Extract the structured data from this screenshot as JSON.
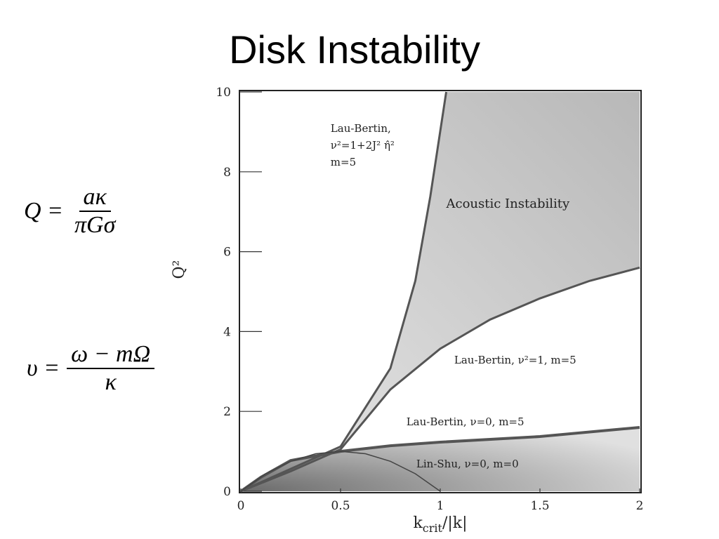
{
  "title": "Disk Instability",
  "equations": [
    {
      "lhs": "Q =",
      "numerator": "aκ",
      "denominator": "πGσ"
    },
    {
      "lhs": "υ =",
      "numerator": "ω − mΩ",
      "denominator": "κ"
    }
  ],
  "chart_data": {
    "type": "line",
    "x_label": {
      "main": "k",
      "sub": "crit",
      "rest": "/|k|"
    },
    "y_label": "Q²",
    "xlim": [
      0,
      2
    ],
    "xticks": [
      0,
      0.5,
      1,
      1.5,
      2
    ],
    "ylim": [
      0,
      10
    ],
    "yticks": [
      0,
      2,
      4,
      6,
      8,
      10
    ],
    "series": [
      {
        "color": "#555555",
        "x": [
          0,
          0.25,
          0.5,
          0.75,
          0.875,
          0.95,
          1.03
        ],
        "values": [
          0,
          0.56,
          1.12,
          3.08,
          5.27,
          7.38,
          10
        ]
      },
      {
        "color": "#555555",
        "x": [
          0,
          0.25,
          0.5,
          0.75,
          1,
          1.25,
          1.5,
          1.75,
          2
        ],
        "values": [
          0,
          0.5,
          1.05,
          2.55,
          3.57,
          4.3,
          4.83,
          5.27,
          5.6
        ]
      },
      {
        "color": "#555555",
        "x": [
          0,
          0.1,
          0.25,
          0.5,
          0.75,
          1,
          1.5,
          2
        ],
        "values": [
          0,
          0.35,
          0.77,
          1.0,
          1.14,
          1.23,
          1.37,
          1.6
        ]
      },
      {
        "color": "#444444",
        "x": [
          0,
          0.125,
          0.25,
          0.375,
          0.5,
          0.625,
          0.75,
          0.875,
          1
        ],
        "values": [
          0,
          0.44,
          0.75,
          0.94,
          1.0,
          0.94,
          0.75,
          0.44,
          0
        ]
      }
    ],
    "annotations": [
      {
        "lines": [
          "Lau-Bertin,",
          "ν²=1+2J² η̂²",
          "m=5"
        ],
        "x": 0.45,
        "y": 9.0
      },
      {
        "lines": [
          "Acoustic Instability"
        ],
        "x": 1.03,
        "y": 7.1
      },
      {
        "lines": [
          "Lau-Bertin,  ν²=1, m=5"
        ],
        "x": 1.07,
        "y": 3.2
      },
      {
        "lines": [
          "Lau-Bertin,  ν=0, m=5"
        ],
        "x": 0.83,
        "y": 1.65
      },
      {
        "lines": [
          "Lin-Shu,  ν=0, m=0"
        ],
        "x": 0.88,
        "y": 0.6
      }
    ]
  }
}
